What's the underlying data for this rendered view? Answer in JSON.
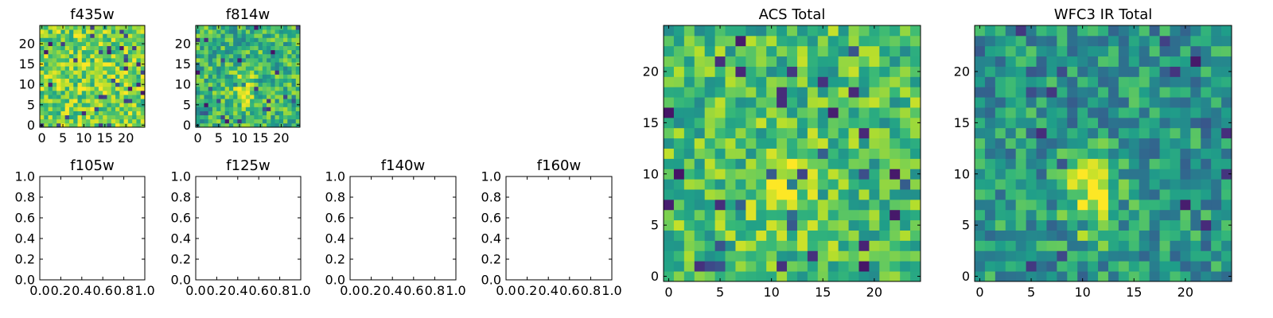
{
  "chart_data": [
    {
      "type": "heatmap",
      "title": "f435w",
      "xticks": [
        "0",
        "5",
        "10",
        "15",
        "20"
      ],
      "yticks": [
        "0",
        "5",
        "10",
        "15",
        "20"
      ],
      "xlim": [
        -0.5,
        24.5
      ],
      "ylim": [
        -0.5,
        24.5
      ],
      "grid": false,
      "colormap": "viridis",
      "n_cells": 25,
      "features": {
        "spot_x": null,
        "spot_y": null,
        "spot_strength": 0,
        "brightness": 0.82
      }
    },
    {
      "type": "heatmap",
      "title": "f814w",
      "xticks": [
        "0",
        "5",
        "10",
        "15",
        "20"
      ],
      "yticks": [
        "0",
        "5",
        "10",
        "15",
        "20"
      ],
      "xlim": [
        -0.5,
        24.5
      ],
      "ylim": [
        -0.5,
        24.5
      ],
      "grid": false,
      "colormap": "viridis",
      "n_cells": 25,
      "features": {
        "spot_x": 11,
        "spot_y": 9,
        "spot_strength": 0.35,
        "brightness": 0.68
      }
    },
    {
      "type": "line",
      "title": "f105w",
      "xticks": [
        "0.0",
        "0.2",
        "0.4",
        "0.6",
        "0.8",
        "1.0"
      ],
      "yticks": [
        "0.0",
        "0.2",
        "0.4",
        "0.6",
        "0.8",
        "1.0"
      ],
      "xlim": [
        0,
        1
      ],
      "ylim": [
        0,
        1
      ],
      "series": []
    },
    {
      "type": "line",
      "title": "f125w",
      "xticks": [
        "0.0",
        "0.2",
        "0.4",
        "0.6",
        "0.8",
        "1.0"
      ],
      "yticks": [
        "0.0",
        "0.2",
        "0.4",
        "0.6",
        "0.8",
        "1.0"
      ],
      "xlim": [
        0,
        1
      ],
      "ylim": [
        0,
        1
      ],
      "series": []
    },
    {
      "type": "line",
      "title": "f140w",
      "xticks": [
        "0.0",
        "0.2",
        "0.4",
        "0.6",
        "0.8",
        "1.0"
      ],
      "yticks": [
        "0.0",
        "0.2",
        "0.4",
        "0.6",
        "0.8",
        "1.0"
      ],
      "xlim": [
        0,
        1
      ],
      "ylim": [
        0,
        1
      ],
      "series": []
    },
    {
      "type": "line",
      "title": "f160w",
      "xticks": [
        "0.0",
        "0.2",
        "0.4",
        "0.6",
        "0.8",
        "1.0"
      ],
      "yticks": [
        "0.0",
        "0.2",
        "0.4",
        "0.6",
        "0.8",
        "1.0"
      ],
      "xlim": [
        0,
        1
      ],
      "ylim": [
        0,
        1
      ],
      "series": []
    },
    {
      "type": "heatmap",
      "title": "ACS Total",
      "xticks": [
        "0",
        "5",
        "10",
        "15",
        "20"
      ],
      "yticks": [
        "0",
        "5",
        "10",
        "15",
        "20"
      ],
      "xlim": [
        -0.5,
        24.5
      ],
      "ylim": [
        -0.5,
        24.5
      ],
      "grid": false,
      "colormap": "viridis",
      "n_cells": 25,
      "features": {
        "spot_x": 11,
        "spot_y": 9,
        "spot_strength": 0.3,
        "brightness": 0.72
      }
    },
    {
      "type": "heatmap",
      "title": "WFC3 IR Total",
      "xticks": [
        "0",
        "5",
        "10",
        "15",
        "20"
      ],
      "yticks": [
        "0",
        "5",
        "10",
        "15",
        "20"
      ],
      "xlim": [
        -0.5,
        24.5
      ],
      "ylim": [
        -0.5,
        24.5
      ],
      "grid": false,
      "colormap": "viridis",
      "n_cells": 25,
      "features": {
        "spot_x": 11,
        "spot_y": 8,
        "spot_strength": 0.55,
        "brightness": 0.55
      }
    }
  ]
}
